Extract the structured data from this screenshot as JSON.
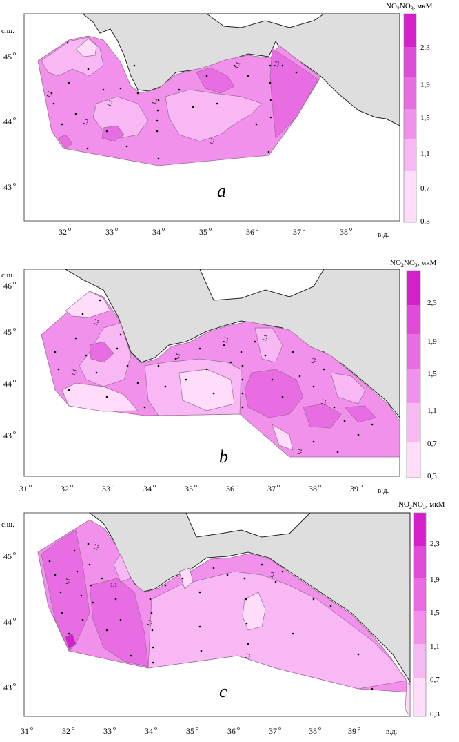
{
  "maps": [
    {
      "letter": "a",
      "lat_axis_label": "с.ш.",
      "lon_axis_label": "в.д.",
      "lat_ticks": [
        "45",
        "44",
        "43"
      ],
      "lon_ticks": [
        "32",
        "33",
        "34",
        "35",
        "36",
        "37",
        "38"
      ],
      "legend": {
        "title": "NO2NO3, мкМ",
        "labels": [
          "2,3",
          "1,9",
          "1,5",
          "1,1",
          "0,7",
          "0,3"
        ]
      },
      "contour_labels": [
        "1,1",
        "1,1",
        "1,1",
        "1,1",
        "1,1",
        "1,1",
        "1,5"
      ]
    },
    {
      "letter": "b",
      "lat_axis_label": "с.ш.",
      "lon_axis_label": "в.д.",
      "lat_ticks": [
        "46",
        "45",
        "44",
        "43"
      ],
      "lon_ticks": [
        "31",
        "32",
        "33",
        "34",
        "35",
        "36",
        "37",
        "38",
        "39"
      ],
      "legend": {
        "title": "NO2NO3, мкМ",
        "labels": [
          "2,3",
          "1,9",
          "1,5",
          "1,1",
          "0,7",
          "0,3"
        ]
      },
      "contour_labels": [
        "1,1",
        "1,1",
        "1,1",
        "1,1",
        "1,1",
        "1,1",
        "1,1",
        "1,1"
      ]
    },
    {
      "letter": "c",
      "lat_axis_label": "с.ш.",
      "lon_axis_label": "в.д.",
      "lat_ticks": [
        "45",
        "44",
        "43"
      ],
      "lon_ticks": [
        "31",
        "32",
        "33",
        "34",
        "35",
        "36",
        "37",
        "38",
        "39"
      ],
      "legend": {
        "title": "NO2NO3, мкМ",
        "labels": [
          "2,3",
          "1,9",
          "1,5",
          "1,1",
          "0,7",
          "0,3"
        ]
      },
      "contour_labels": [
        "1,1",
        "1,1",
        "1,1",
        "1,1",
        "1,1",
        "1,1"
      ]
    }
  ],
  "colors": {
    "land": "#dedede",
    "c1": "#ffdcfa",
    "c2": "#f7b8f3",
    "c3": "#f291ec",
    "c4": "#e96de2",
    "c5": "#e04ad8",
    "c6": "#d61fcc"
  }
}
